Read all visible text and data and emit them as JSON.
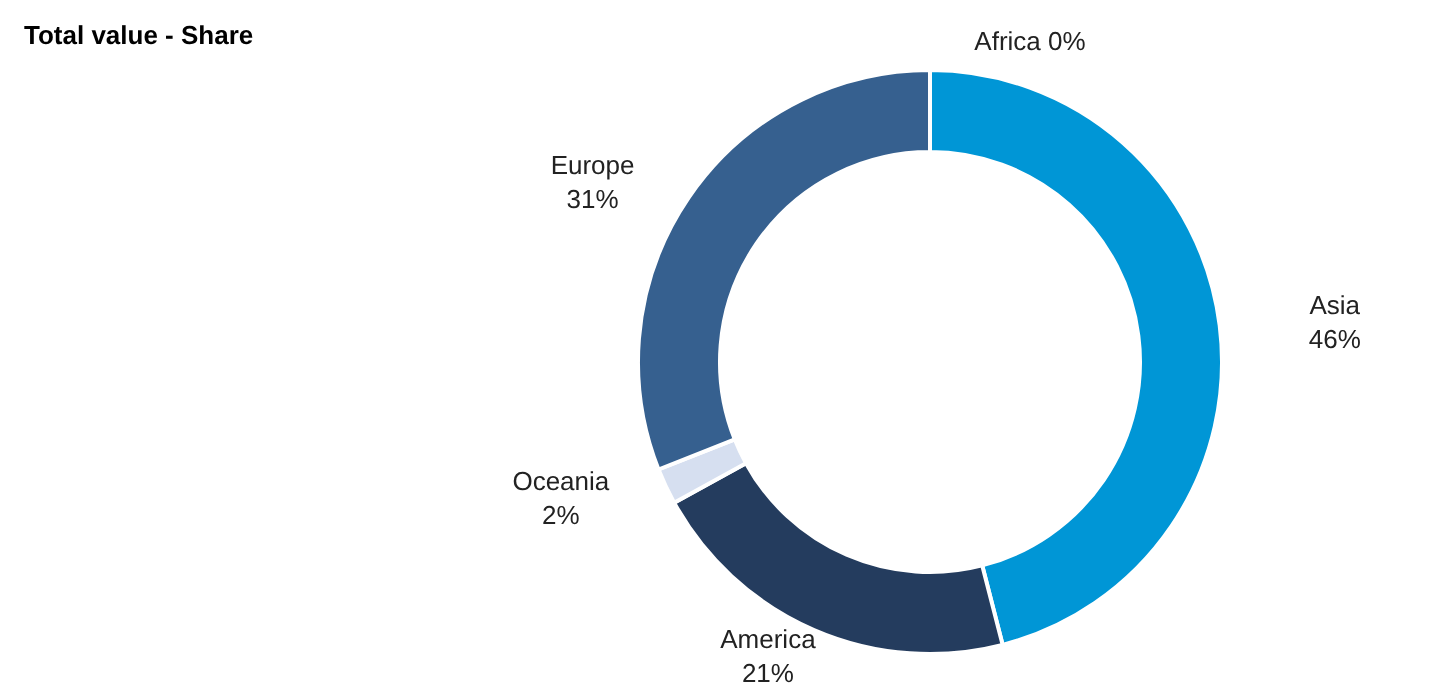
{
  "chart_data": {
    "type": "donut",
    "title": "Total value - Share",
    "categories": [
      "Africa",
      "Asia",
      "America",
      "Oceania",
      "Europe"
    ],
    "values": [
      0,
      46,
      21,
      2,
      31
    ],
    "value_labels": [
      "0%",
      "46%",
      "21%",
      "2%",
      "31%"
    ],
    "colors": [
      "#d9e2f1",
      "#0096d6",
      "#243c5e",
      "#d6dff0",
      "#36608f"
    ]
  }
}
